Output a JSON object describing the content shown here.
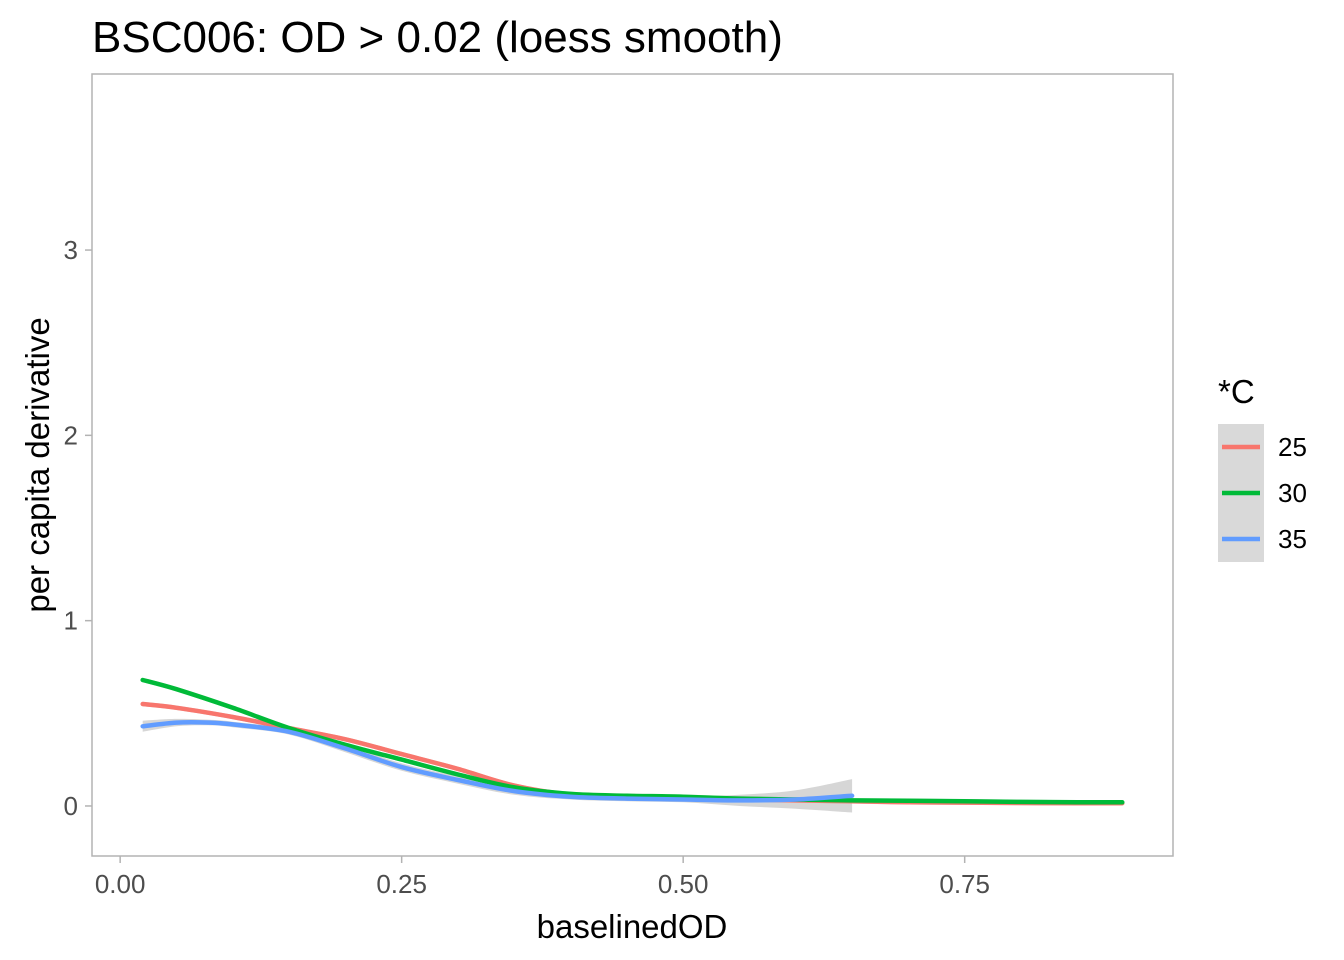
{
  "chart_data": {
    "type": "line",
    "title": "BSC006: OD > 0.02 (loess smooth)",
    "xlabel": "baselinedOD",
    "ylabel": "per capita derivative",
    "xlim": [
      -0.025,
      0.935
    ],
    "ylim": [
      -0.27,
      3.95
    ],
    "x_ticks": [
      {
        "value": 0.0,
        "label": "0.00"
      },
      {
        "value": 0.25,
        "label": "0.25"
      },
      {
        "value": 0.5,
        "label": "0.50"
      },
      {
        "value": 0.75,
        "label": "0.75"
      }
    ],
    "y_ticks": [
      {
        "value": 0,
        "label": "0"
      },
      {
        "value": 1,
        "label": "1"
      },
      {
        "value": 2,
        "label": "2"
      },
      {
        "value": 3,
        "label": "3"
      }
    ],
    "grid": false,
    "panel_border": true,
    "legend": {
      "title": "*C",
      "position": "right",
      "entries": [
        {
          "label": "25",
          "color": "#F8766D"
        },
        {
          "label": "30",
          "color": "#00BA38"
        },
        {
          "label": "35",
          "color": "#619CFF"
        }
      ]
    },
    "series": [
      {
        "name": "25",
        "color": "#F8766D",
        "x": [
          0.02,
          0.05,
          0.1,
          0.15,
          0.2,
          0.25,
          0.3,
          0.35,
          0.4,
          0.45,
          0.5,
          0.55,
          0.6,
          0.65,
          0.7,
          0.75,
          0.8,
          0.85,
          0.89
        ],
        "y": [
          0.55,
          0.53,
          0.48,
          0.42,
          0.36,
          0.28,
          0.2,
          0.11,
          0.06,
          0.045,
          0.04,
          0.035,
          0.03,
          0.025,
          0.02,
          0.018,
          0.016,
          0.015,
          0.015
        ],
        "band": 0.012
      },
      {
        "name": "30",
        "color": "#00BA38",
        "x": [
          0.02,
          0.05,
          0.1,
          0.15,
          0.2,
          0.25,
          0.3,
          0.35,
          0.4,
          0.45,
          0.5,
          0.55,
          0.6,
          0.65,
          0.7,
          0.75,
          0.8,
          0.85,
          0.89
        ],
        "y": [
          0.68,
          0.63,
          0.53,
          0.42,
          0.33,
          0.25,
          0.17,
          0.1,
          0.065,
          0.055,
          0.05,
          0.04,
          0.035,
          0.03,
          0.028,
          0.025,
          0.022,
          0.02,
          0.02
        ],
        "band": 0.012
      },
      {
        "name": "35",
        "color": "#619CFF",
        "x": [
          0.02,
          0.05,
          0.08,
          0.1,
          0.15,
          0.2,
          0.25,
          0.3,
          0.35,
          0.4,
          0.45,
          0.5,
          0.55,
          0.6,
          0.65
        ],
        "y": [
          0.43,
          0.45,
          0.45,
          0.44,
          0.4,
          0.31,
          0.21,
          0.14,
          0.08,
          0.05,
          0.04,
          0.035,
          0.03,
          0.035,
          0.055
        ],
        "band": [
          0.03,
          0.02,
          0.015,
          0.015,
          0.015,
          0.02,
          0.02,
          0.02,
          0.02,
          0.015,
          0.015,
          0.015,
          0.03,
          0.05,
          0.09
        ]
      }
    ]
  }
}
